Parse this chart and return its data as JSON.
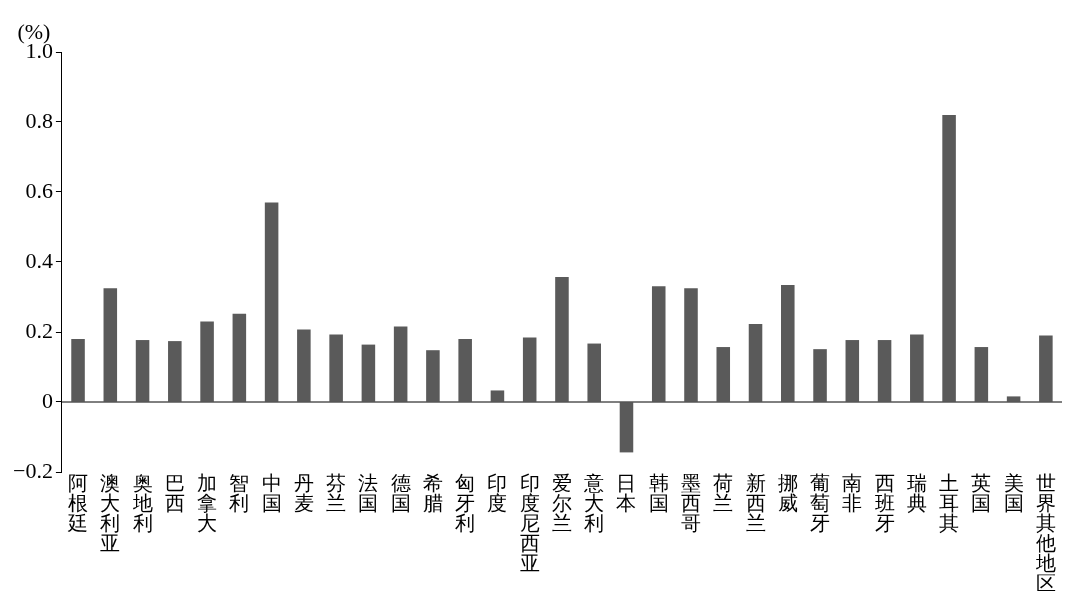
{
  "chart_data": {
    "type": "bar",
    "ylabel": "(%)",
    "categories": [
      "阿根廷",
      "澳大利亚",
      "奥地利",
      "巴西",
      "加拿大",
      "智利",
      "中国",
      "丹麦",
      "芬兰",
      "法国",
      "德国",
      "希腊",
      "匈牙利",
      "印度",
      "印度尼西亚",
      "爱尔兰",
      "意大利",
      "日本",
      "韩国",
      "墨西哥",
      "荷兰",
      "新西兰",
      "挪威",
      "葡萄牙",
      "南非",
      "西班牙",
      "瑞典",
      "土耳其",
      "英国",
      "美国",
      "世界其他地区"
    ],
    "values": [
      0.18,
      0.325,
      0.177,
      0.174,
      0.23,
      0.252,
      0.57,
      0.207,
      0.193,
      0.164,
      0.216,
      0.148,
      0.18,
      0.033,
      0.184,
      0.357,
      0.167,
      -0.144,
      0.331,
      0.325,
      0.157,
      0.223,
      0.334,
      0.151,
      0.177,
      0.177,
      0.193,
      0.82,
      0.157,
      0.016,
      0.19
    ],
    "color": "#5a5a5a",
    "ylim": [
      -0.2,
      1.0
    ],
    "yticks": [
      {
        "value": -0.2,
        "label": "−0.2"
      },
      0,
      0.2,
      0.4,
      0.6,
      0.8,
      {
        "value": 1.0,
        "label": "1.0"
      }
    ],
    "legend": false
  }
}
